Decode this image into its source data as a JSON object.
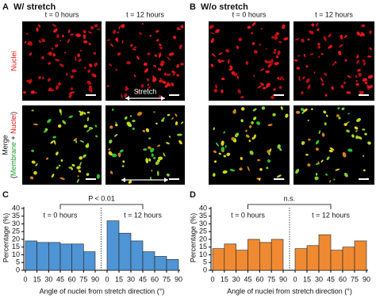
{
  "panels": {
    "a": {
      "label": "A",
      "title": "W/ stretch"
    },
    "b": {
      "label": "B",
      "title": "W/o stretch"
    },
    "column_headers": [
      "t = 0 hours",
      "t = 12 hours",
      "t = 0 hours",
      "t = 12 hours"
    ],
    "row_labels": {
      "nuclei": "Nuclei",
      "merge": "Merge",
      "merge_parts": [
        "(",
        "Membrane",
        " + ",
        "Nuclei",
        ")"
      ]
    },
    "stretch_label": "Stretch"
  },
  "chart_data": [
    {
      "type": "histogram",
      "label": "C",
      "ylabel": "Percentage (%)",
      "xlabel": "Angle of nuclei from stretch direction (°)",
      "annotation": "P < 0.01",
      "color": "#4f94d4",
      "ylim": [
        0,
        40
      ],
      "yticks": [
        0,
        5,
        10,
        15,
        20,
        25,
        30,
        35,
        40
      ],
      "groups": [
        {
          "name": "t = 0 hours",
          "bins": [
            0,
            15,
            30,
            45,
            60,
            75,
            90
          ],
          "counts": [
            19,
            18,
            18,
            17,
            17,
            12
          ]
        },
        {
          "name": "t = 12 hours",
          "bins": [
            0,
            15,
            30,
            45,
            60,
            75,
            90
          ],
          "counts": [
            32,
            24,
            19,
            12,
            9,
            7
          ]
        }
      ]
    },
    {
      "type": "histogram",
      "label": "D",
      "ylabel": "Percentage (%)",
      "xlabel": "Angle of nuclei from stretch direction (°)",
      "annotation": "n.s.",
      "color": "#ef8a32",
      "ylim": [
        0,
        40
      ],
      "yticks": [
        0,
        5,
        10,
        15,
        20,
        25,
        30,
        35,
        40
      ],
      "groups": [
        {
          "name": "t = 0 hours",
          "bins": [
            0,
            15,
            30,
            45,
            60,
            75,
            90
          ],
          "counts": [
            14,
            17,
            13,
            20,
            18,
            20
          ]
        },
        {
          "name": "t = 12 hours",
          "bins": [
            0,
            15,
            30,
            45,
            60,
            75,
            90
          ],
          "counts": [
            14,
            16,
            23,
            13,
            15,
            19
          ]
        }
      ]
    }
  ]
}
